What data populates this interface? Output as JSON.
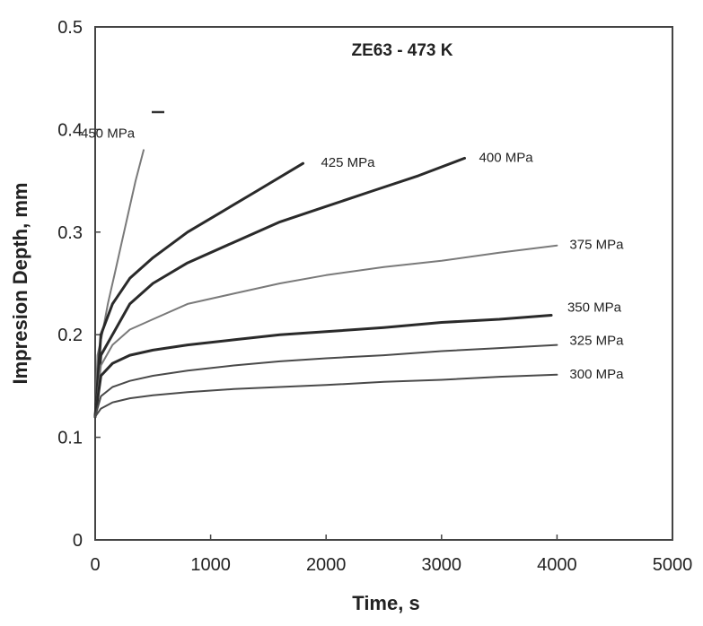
{
  "chart_data": {
    "type": "line",
    "title": "ZE63 - 473 K",
    "xlabel": "Time, s",
    "ylabel": "Impresion Depth, mm",
    "xlim": [
      0,
      5000
    ],
    "ylim": [
      0,
      0.5
    ],
    "x_ticks": [
      "0",
      "1000",
      "2000",
      "3000",
      "4000",
      "5000"
    ],
    "y_ticks": [
      "0",
      "0.1",
      "0.2",
      "0.3",
      "0.4",
      "0.5"
    ],
    "grid": false,
    "legend": "none",
    "series": [
      {
        "name": "450 MPa",
        "stroke": "#7a7a7a",
        "points": [
          [
            0,
            0.12
          ],
          [
            20,
            0.18
          ],
          [
            60,
            0.2
          ],
          [
            110,
            0.23
          ],
          [
            170,
            0.26
          ],
          [
            230,
            0.29
          ],
          [
            290,
            0.32
          ],
          [
            350,
            0.35
          ],
          [
            420,
            0.38
          ]
        ]
      },
      {
        "name": "425 MPa",
        "stroke": "#2a2a2a",
        "points": [
          [
            0,
            0.12
          ],
          [
            50,
            0.2
          ],
          [
            150,
            0.23
          ],
          [
            300,
            0.255
          ],
          [
            500,
            0.275
          ],
          [
            800,
            0.3
          ],
          [
            1100,
            0.32
          ],
          [
            1400,
            0.34
          ],
          [
            1800,
            0.367
          ]
        ]
      },
      {
        "name": "400 MPa",
        "stroke": "#2a2a2a",
        "points": [
          [
            0,
            0.12
          ],
          [
            50,
            0.18
          ],
          [
            150,
            0.2
          ],
          [
            300,
            0.23
          ],
          [
            500,
            0.25
          ],
          [
            800,
            0.27
          ],
          [
            1200,
            0.29
          ],
          [
            1600,
            0.31
          ],
          [
            2000,
            0.325
          ],
          [
            2400,
            0.34
          ],
          [
            2800,
            0.355
          ],
          [
            3200,
            0.372
          ]
        ]
      },
      {
        "name": "375 MPa",
        "stroke": "#7a7a7a",
        "points": [
          [
            0,
            0.12
          ],
          [
            50,
            0.17
          ],
          [
            150,
            0.19
          ],
          [
            300,
            0.205
          ],
          [
            500,
            0.215
          ],
          [
            800,
            0.23
          ],
          [
            1200,
            0.24
          ],
          [
            1600,
            0.25
          ],
          [
            2000,
            0.258
          ],
          [
            2500,
            0.266
          ],
          [
            3000,
            0.272
          ],
          [
            3500,
            0.28
          ],
          [
            4000,
            0.287
          ]
        ]
      },
      {
        "name": "350 MPa",
        "stroke": "#2a2a2a",
        "points": [
          [
            0,
            0.12
          ],
          [
            50,
            0.16
          ],
          [
            150,
            0.172
          ],
          [
            300,
            0.18
          ],
          [
            500,
            0.185
          ],
          [
            800,
            0.19
          ],
          [
            1200,
            0.195
          ],
          [
            1600,
            0.2
          ],
          [
            2000,
            0.203
          ],
          [
            2500,
            0.207
          ],
          [
            3000,
            0.212
          ],
          [
            3500,
            0.215
          ],
          [
            3950,
            0.219
          ]
        ]
      },
      {
        "name": "325 MPa",
        "stroke": "#4a4a4a",
        "points": [
          [
            0,
            0.12
          ],
          [
            50,
            0.14
          ],
          [
            150,
            0.149
          ],
          [
            300,
            0.155
          ],
          [
            500,
            0.16
          ],
          [
            800,
            0.165
          ],
          [
            1200,
            0.17
          ],
          [
            1600,
            0.174
          ],
          [
            2000,
            0.177
          ],
          [
            2500,
            0.18
          ],
          [
            3000,
            0.184
          ],
          [
            3500,
            0.187
          ],
          [
            4000,
            0.19
          ]
        ]
      },
      {
        "name": "300 MPa",
        "stroke": "#4a4a4a",
        "points": [
          [
            0,
            0.12
          ],
          [
            50,
            0.128
          ],
          [
            150,
            0.134
          ],
          [
            300,
            0.138
          ],
          [
            500,
            0.141
          ],
          [
            800,
            0.144
          ],
          [
            1200,
            0.147
          ],
          [
            1600,
            0.149
          ],
          [
            2000,
            0.151
          ],
          [
            2500,
            0.154
          ],
          [
            3000,
            0.156
          ],
          [
            3500,
            0.159
          ],
          [
            4000,
            0.161
          ]
        ]
      }
    ]
  }
}
